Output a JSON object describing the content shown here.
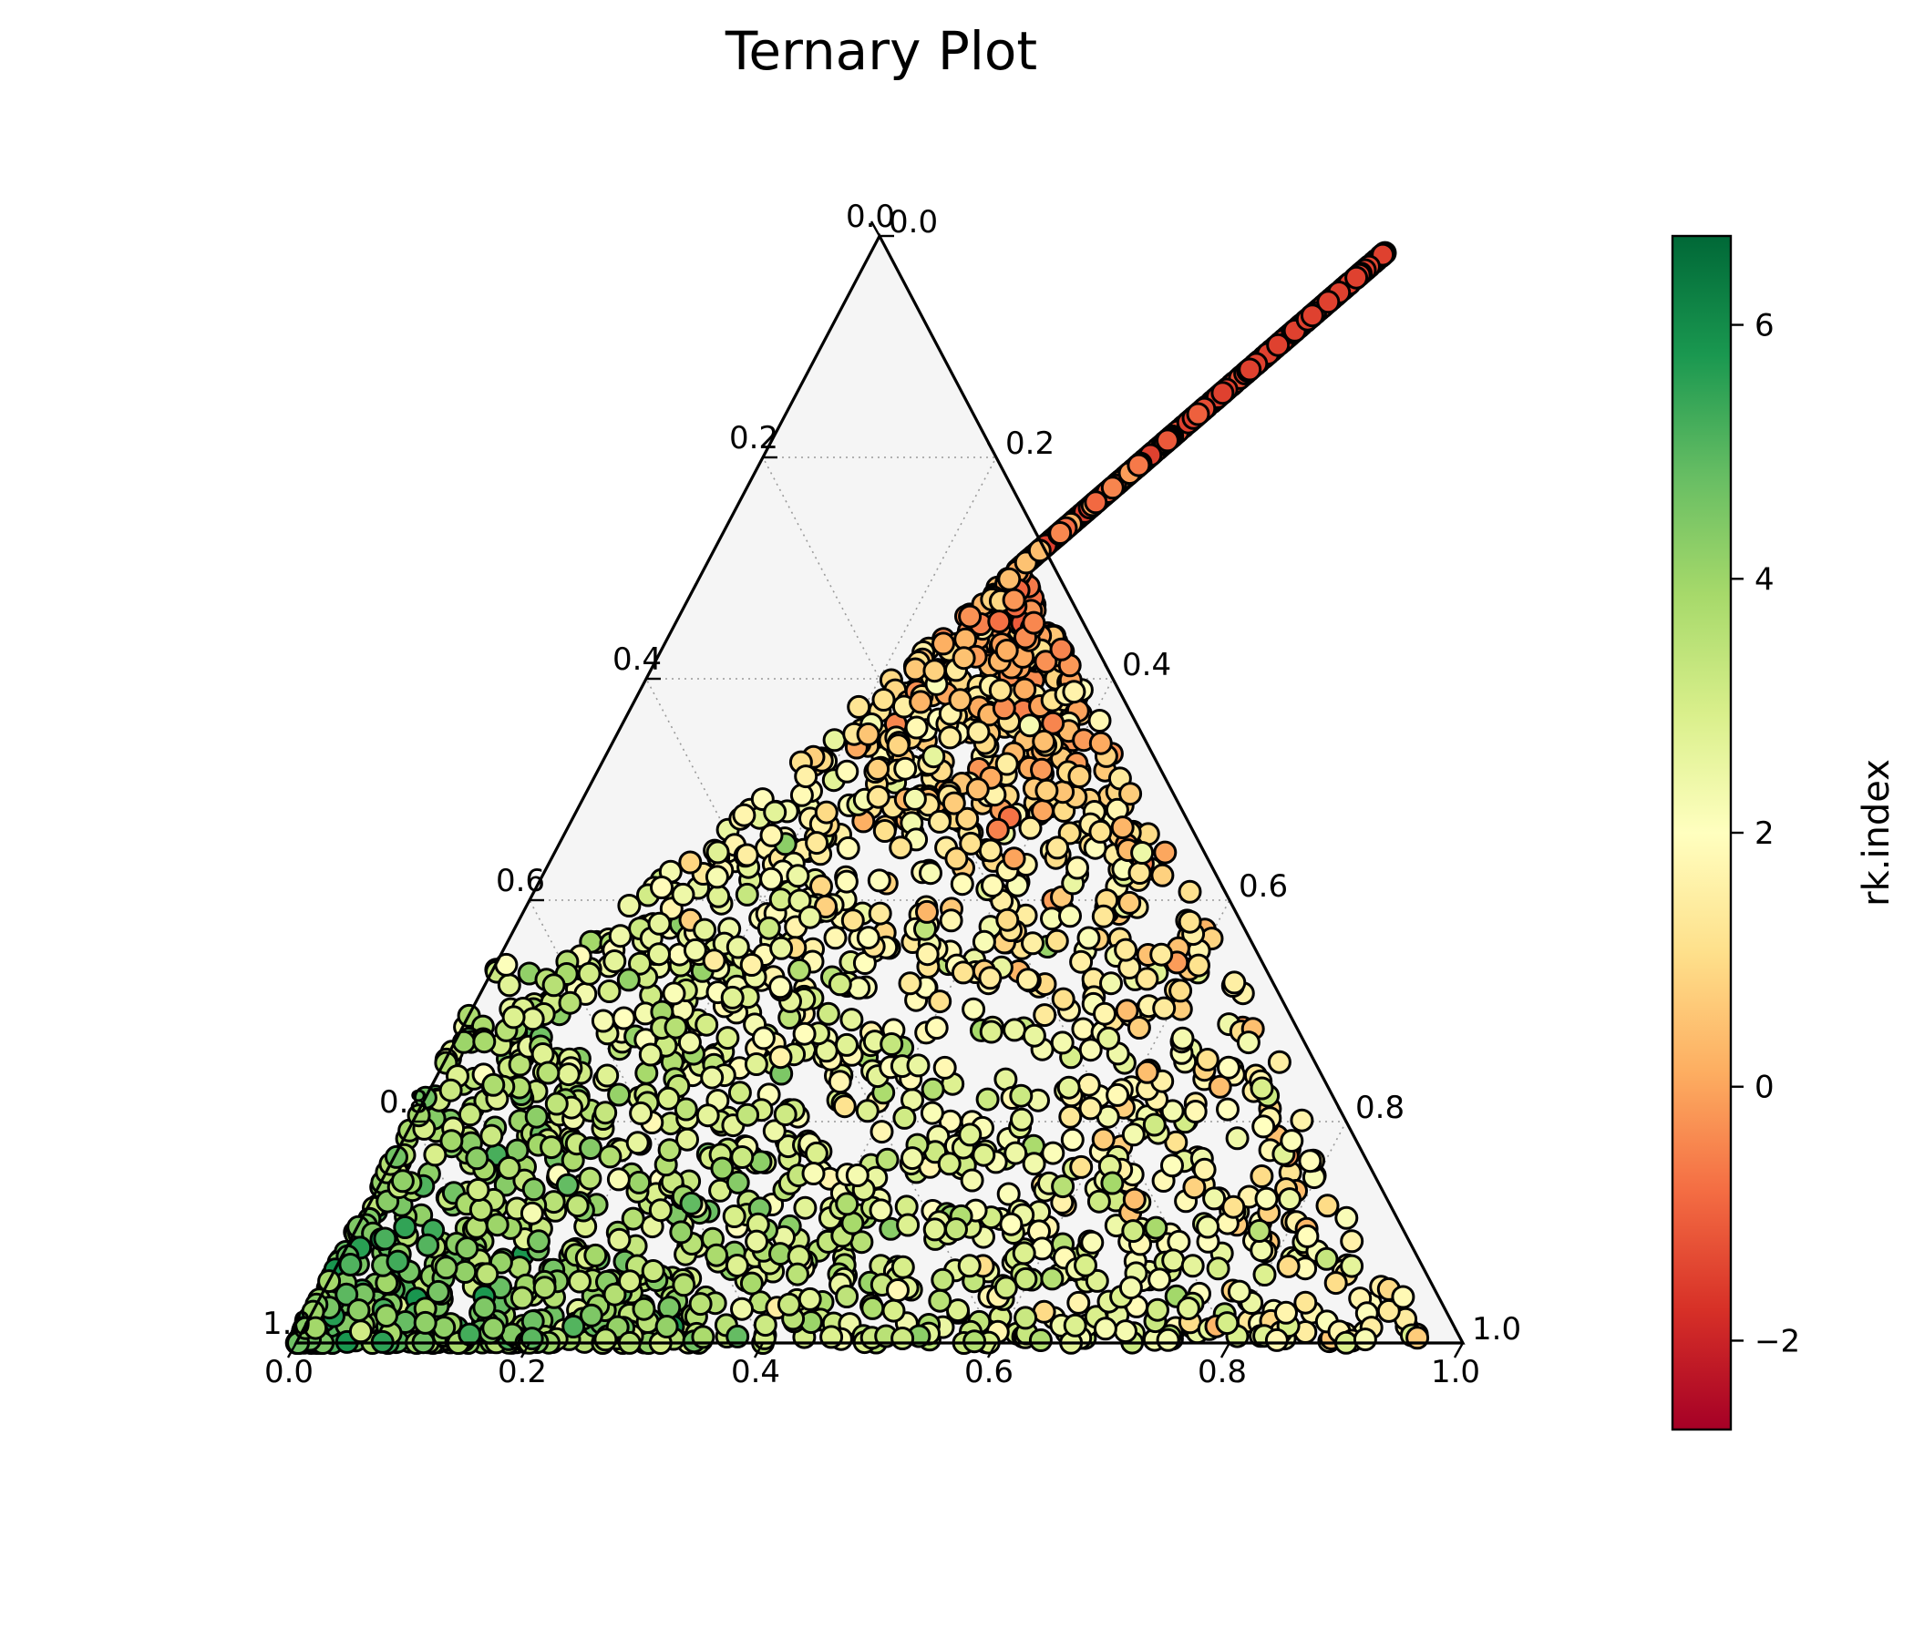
{
  "chart_data": {
    "type": "scatter",
    "subtype": "ternary",
    "title": "Ternary Plot",
    "grid": true,
    "grid_style": "dotted",
    "triangle_background": "#f5f5f5",
    "bottom_axis": {
      "range": [
        0.0,
        1.0
      ],
      "ticks": [
        "0.0",
        "0.2",
        "0.4",
        "0.6",
        "0.8",
        "1.0"
      ]
    },
    "left_axis": {
      "range": [
        0.0,
        1.0
      ],
      "ticks": [
        "0.0",
        "0.2",
        "0.4",
        "0.6",
        "0.8",
        "1.0"
      ]
    },
    "right_axis": {
      "range": [
        1.0,
        0.0
      ],
      "ticks": [
        "1.0",
        "0.8",
        "0.6",
        "0.4",
        "0.2",
        "0.0"
      ]
    },
    "colorbar": {
      "label": "rk.index",
      "colormap": "RdYlGn",
      "range": [
        -2.7,
        6.7
      ],
      "ticks": [
        "−2",
        "0",
        "2",
        "4",
        "6"
      ],
      "tick_values": [
        -2,
        0,
        2,
        4,
        6
      ]
    },
    "marker": {
      "shape": "circle",
      "edge_color": "#000000"
    },
    "point_count_estimate": 6000,
    "distribution": "points fill the whole triangle; near the top vertex (high right-axis component) values are low (orange/red, about -1 to 1); in the middle and right the values are about 1 to 3 (pale yellow); toward the lower-left vertex values are high (green, about 3 to 5.5)",
    "sample_points": [
      {
        "b": 0.05,
        "l": 0.03,
        "v": 5.5
      },
      {
        "b": 0.12,
        "l": 0.04,
        "v": 5.0
      },
      {
        "b": 0.2,
        "l": 0.05,
        "v": 4.5
      },
      {
        "b": 0.35,
        "l": 0.03,
        "v": 3.5
      },
      {
        "b": 0.5,
        "l": 0.02,
        "v": 3.0
      },
      {
        "b": 0.7,
        "l": 0.03,
        "v": 2.5
      },
      {
        "b": 0.92,
        "l": 0.02,
        "v": 1.8
      },
      {
        "b": 0.3,
        "l": 0.3,
        "v": 3.2
      },
      {
        "b": 0.55,
        "l": 0.45,
        "v": 1.5
      },
      {
        "b": 0.52,
        "l": 0.8,
        "v": 0.5
      },
      {
        "b": 0.5,
        "l": 0.95,
        "v": -0.8
      }
    ]
  }
}
